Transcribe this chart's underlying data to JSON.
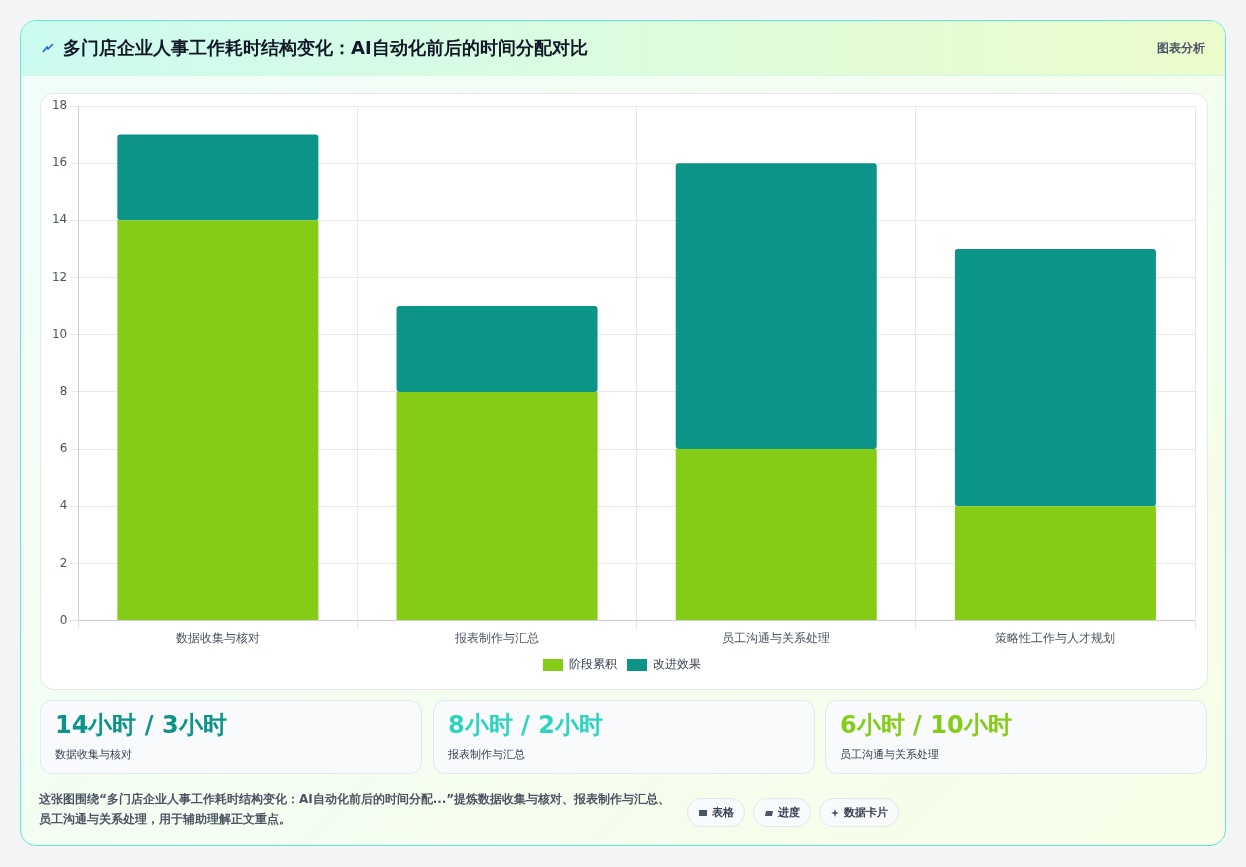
{
  "chart_data": [
    {
      "type": "bar",
      "title": "多门店企业人事工作耗时结构变化：AI自动化前后的时间分配对比",
      "subtitle": "图表分析",
      "categories": [
        "数据收集与核对",
        "报表制作与汇总",
        "员工沟通与关系处理",
        "策略性工作与人才规划"
      ],
      "stacked": true,
      "series": [
        {
          "name": "阶段累积",
          "color": "#84cc16",
          "values": [
            14,
            8,
            6,
            4
          ]
        },
        {
          "name": "改进效果",
          "color": "#0d9488",
          "values": [
            3,
            3,
            10,
            9
          ]
        }
      ],
      "ylim": [
        0,
        18
      ],
      "yticks": [
        0,
        2,
        4,
        6,
        8,
        10,
        12,
        14,
        16,
        18
      ],
      "grid": true,
      "legend": "bottom"
    },
    {
      "type": "other",
      "annotations": [
        "14小时 / 3小时",
        "数据收集与核对",
        "8小时 / 2小时",
        "报表制作与汇总",
        "6小时 / 10小时",
        "员工沟通与关系处理",
        "这张图围绕“多门店企业人事工作耗时结构变化：AI自动化前后的时间分配...”提炼数据收集与核对、报表制作与汇总、员工沟通与关系处理，用于辅助理解正文重点。",
        "表格",
        "进度",
        "数据卡片"
      ]
    }
  ]
}
